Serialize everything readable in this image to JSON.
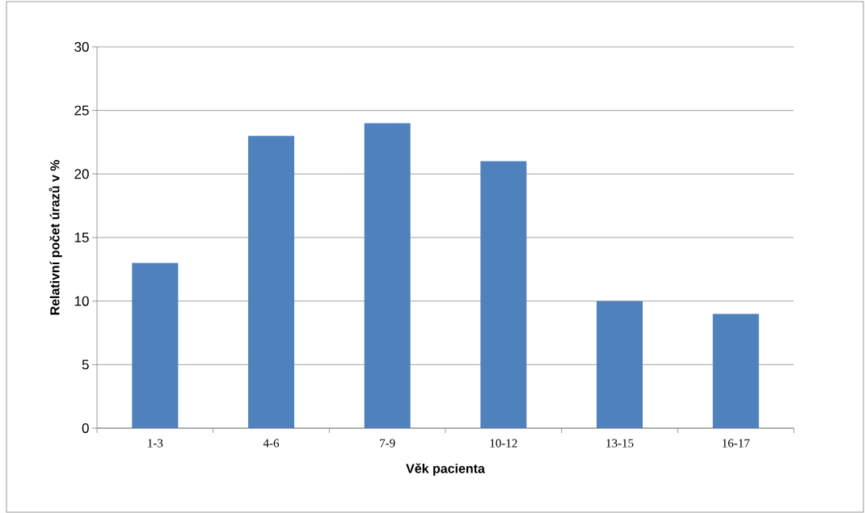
{
  "chart_data": {
    "type": "bar",
    "xlabel": "Věk pacienta",
    "ylabel": "Relativní počet úrazů v %",
    "categories": [
      "1-3",
      "4-6",
      "7-9",
      "10-12",
      "13-15",
      "16-17"
    ],
    "values": [
      13,
      23,
      24,
      21,
      10,
      9
    ],
    "color": "#4f81bd",
    "ylim": [
      0,
      30
    ],
    "yticks": [
      0,
      5,
      10,
      15,
      20,
      25,
      30
    ],
    "grid": "y"
  }
}
